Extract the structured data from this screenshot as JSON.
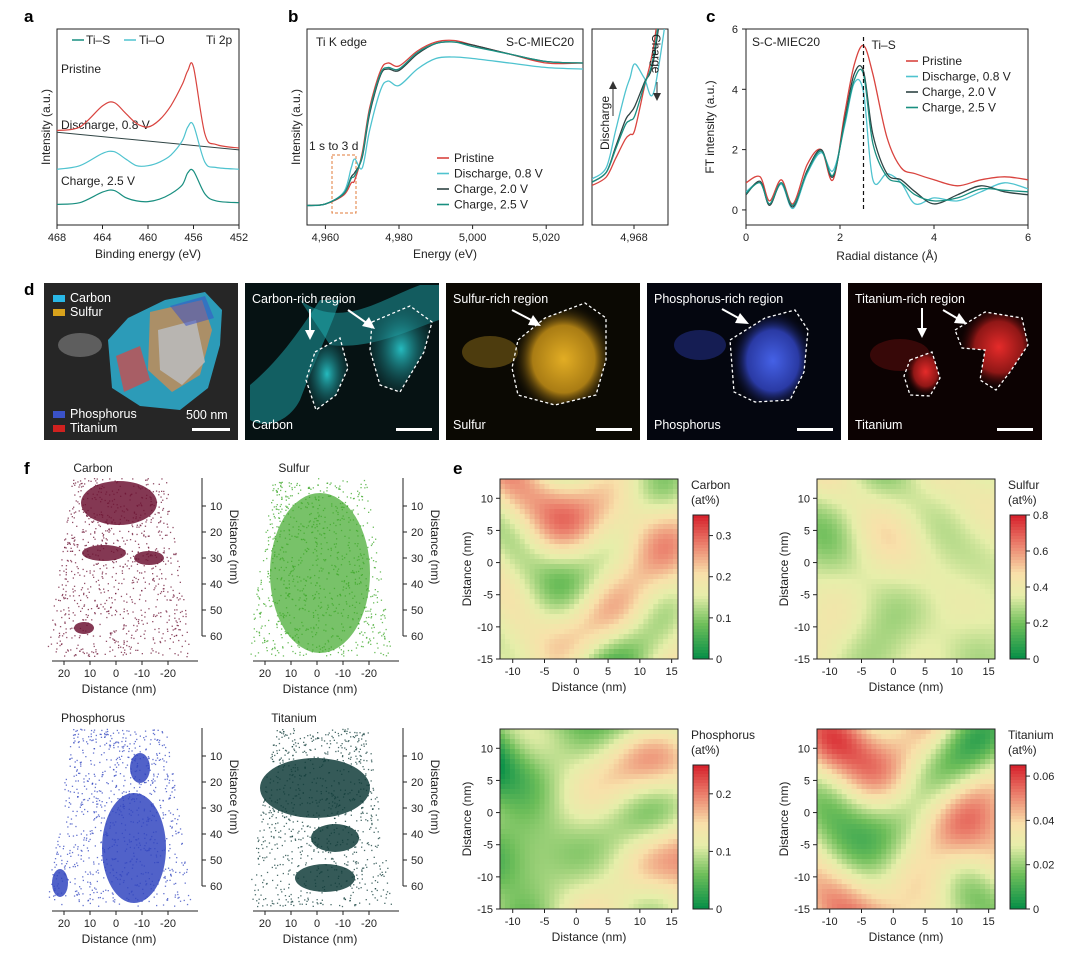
{
  "panel_labels": [
    "a",
    "b",
    "c",
    "d",
    "e",
    "f"
  ],
  "colors": {
    "pristine": "#d9443f",
    "discharge": "#4fc3cf",
    "charge20": "#2f4444",
    "charge25": "#198f80",
    "carbon_map": "#29c6cc",
    "sulfur_map": "#d8a21c",
    "phosphorus_map": "#3a4fd0",
    "titanium_map": "#d0211f",
    "apt_carbon": "#6e1535",
    "apt_sulfur": "#3ea829",
    "apt_phosphorus": "#3347c0",
    "apt_titanium": "#123d3b"
  },
  "chart_data": [
    {
      "id": "a",
      "type": "line",
      "title": "Ti 2p",
      "legend": [
        "Ti–S",
        "Ti–O"
      ],
      "xlabel": "Binding energy (eV)",
      "ylabel": "Intensity (a.u.)",
      "xlim": [
        468,
        452
      ],
      "xticks": [
        "468",
        "464",
        "460",
        "456",
        "452"
      ],
      "traces": [
        "Pristine",
        "Discharge, 0.8 V",
        "Charge, 2.5 V"
      ],
      "series": [
        {
          "name": "Pristine",
          "x": [
            468,
            466,
            464,
            463,
            462,
            461,
            460,
            459,
            458,
            457,
            456.5,
            456,
            455,
            454,
            452
          ],
          "y": [
            1.6,
            1.7,
            2.3,
            2.4,
            2.1,
            1.8,
            1.7,
            1.9,
            2.3,
            2.9,
            3.3,
            3.4,
            1.5,
            1.2,
            1.1
          ]
        },
        {
          "name": "Discharge, 0.8 V",
          "x": [
            468,
            466,
            464,
            463,
            462,
            461,
            460,
            459,
            458,
            457,
            456.5,
            456,
            455,
            454,
            452
          ],
          "y": [
            0.5,
            0.6,
            0.95,
            1.0,
            0.8,
            0.6,
            0.6,
            0.7,
            0.9,
            1.3,
            1.7,
            1.75,
            0.7,
            0.55,
            0.5
          ]
        },
        {
          "name": "Charge, 2.5 V",
          "x": [
            468,
            466,
            464,
            463,
            462,
            461,
            460,
            459,
            458,
            457,
            456.5,
            456,
            455,
            454,
            452
          ],
          "y": [
            -0.5,
            -0.45,
            -0.15,
            -0.1,
            -0.3,
            -0.4,
            -0.42,
            -0.35,
            -0.2,
            0.05,
            0.4,
            0.45,
            -0.2,
            -0.4,
            -0.45
          ]
        }
      ]
    },
    {
      "id": "b",
      "type": "line",
      "title_left": "Ti K edge",
      "title_right": "S-C-MIEC20",
      "xlabel": "Energy (eV)",
      "ylabel": "Intensity (a.u.)",
      "xlim": [
        4955,
        5030
      ],
      "xticks": [
        "4,960",
        "4,980",
        "5,000",
        "5,020"
      ],
      "inset_xtick": "4,968",
      "annotations": [
        "1 s to 3 d",
        "Discharge",
        "Charge"
      ],
      "series": [
        {
          "name": "Pristine",
          "x": [
            4955,
            4960,
            4965,
            4967,
            4968,
            4970,
            4972,
            4975,
            4977,
            4980,
            4985,
            4990,
            4995,
            5000,
            5010,
            5020,
            5030
          ],
          "y": [
            0.05,
            0.06,
            0.12,
            0.2,
            0.22,
            0.4,
            0.7,
            0.95,
            1.0,
            0.98,
            1.08,
            1.14,
            1.15,
            1.12,
            1.06,
            1.0,
            1.0
          ]
        },
        {
          "name": "Discharge, 0.8 V",
          "x": [
            4955,
            4960,
            4965,
            4967,
            4968,
            4970,
            4972,
            4975,
            4977,
            4980,
            4985,
            4990,
            4995,
            5000,
            5010,
            5020,
            5030
          ],
          "y": [
            0.05,
            0.06,
            0.14,
            0.3,
            0.36,
            0.3,
            0.55,
            0.82,
            0.88,
            0.85,
            0.96,
            1.03,
            1.04,
            1.03,
            1.0,
            0.97,
            0.96
          ]
        },
        {
          "name": "Charge, 2.0 V",
          "x": [
            4955,
            4960,
            4965,
            4967,
            4968,
            4970,
            4972,
            4975,
            4977,
            4980,
            4985,
            4990,
            4995,
            5000,
            5010,
            5020,
            5030
          ],
          "y": [
            0.05,
            0.06,
            0.13,
            0.24,
            0.27,
            0.37,
            0.66,
            0.92,
            0.96,
            0.95,
            1.06,
            1.13,
            1.14,
            1.12,
            1.06,
            1.01,
            1.0
          ]
        },
        {
          "name": "Charge, 2.5 V",
          "x": [
            4955,
            4960,
            4965,
            4967,
            4968,
            4970,
            4972,
            4975,
            4977,
            4980,
            4985,
            4990,
            4995,
            5000,
            5010,
            5020,
            5030
          ],
          "y": [
            0.05,
            0.06,
            0.13,
            0.23,
            0.25,
            0.38,
            0.68,
            0.93,
            0.97,
            0.96,
            1.07,
            1.13,
            1.14,
            1.11,
            1.06,
            1.01,
            1.0
          ]
        }
      ]
    },
    {
      "id": "c",
      "type": "line",
      "title": "S-C-MIEC20",
      "marker_label": "Ti–S",
      "marker_x": 2.5,
      "xlabel": "Radial distance (Å)",
      "ylabel": "FT intensity (a.u.)",
      "xlim": [
        0,
        6
      ],
      "ylim": [
        -0.5,
        6
      ],
      "xticks": [
        "0",
        "2",
        "4",
        "6"
      ],
      "yticks": [
        "0",
        "2",
        "4",
        "6"
      ],
      "series": [
        {
          "name": "Pristine",
          "x": [
            0,
            0.3,
            0.5,
            0.75,
            1.0,
            1.3,
            1.6,
            1.85,
            2.1,
            2.3,
            2.5,
            2.7,
            3.0,
            3.3,
            3.6,
            4.0,
            4.5,
            5.0,
            5.5,
            6.0
          ],
          "y": [
            0.9,
            1.1,
            0.3,
            1.0,
            0.2,
            1.5,
            2.0,
            1.0,
            3.2,
            4.8,
            5.45,
            4.5,
            2.4,
            1.4,
            1.2,
            1.0,
            0.8,
            1.0,
            1.1,
            1.0
          ]
        },
        {
          "name": "Discharge, 0.8 V",
          "x": [
            0,
            0.3,
            0.5,
            0.75,
            1.0,
            1.3,
            1.6,
            1.85,
            2.1,
            2.3,
            2.5,
            2.7,
            3.0,
            3.3,
            3.6,
            4.0,
            4.5,
            5.0,
            5.5,
            6.0
          ],
          "y": [
            0.6,
            0.9,
            0.2,
            0.85,
            0.05,
            1.2,
            1.9,
            1.3,
            2.8,
            4.2,
            3.9,
            1.0,
            1.2,
            0.9,
            0.2,
            0.4,
            0.3,
            0.6,
            0.9,
            0.7
          ]
        },
        {
          "name": "Charge, 2.0 V",
          "x": [
            0,
            0.3,
            0.5,
            0.75,
            1.0,
            1.3,
            1.6,
            1.85,
            2.1,
            2.3,
            2.5,
            2.7,
            3.0,
            3.3,
            3.6,
            4.0,
            4.5,
            5.0,
            5.5,
            6.0
          ],
          "y": [
            0.5,
            0.95,
            0.15,
            0.9,
            0.1,
            1.3,
            2.0,
            1.1,
            3.0,
            4.5,
            4.6,
            2.5,
            1.2,
            1.0,
            0.6,
            0.2,
            0.5,
            0.8,
            0.6,
            0.5
          ]
        },
        {
          "name": "Charge, 2.5 V",
          "x": [
            0,
            0.3,
            0.5,
            0.75,
            1.0,
            1.3,
            1.6,
            1.85,
            2.1,
            2.3,
            2.5,
            2.7,
            3.0,
            3.3,
            3.6,
            4.0,
            4.5,
            5.0,
            5.5,
            6.0
          ],
          "y": [
            0.55,
            0.9,
            0.2,
            0.9,
            0.15,
            1.25,
            1.95,
            1.15,
            2.9,
            4.3,
            4.5,
            2.2,
            1.1,
            0.9,
            0.5,
            0.3,
            0.4,
            0.7,
            0.65,
            0.6
          ]
        }
      ]
    },
    {
      "id": "f",
      "type": "heatmap",
      "xlabel": "Distance (nm)",
      "ylabel": "Distance (nm)",
      "xlim": [
        -12,
        16
      ],
      "ylim": [
        -15,
        13
      ],
      "xticks": [
        "-10",
        "-5",
        "0",
        "5",
        "10",
        "15"
      ],
      "yticks": [
        "10",
        "5",
        "0",
        "-5",
        "-10",
        "-15"
      ],
      "maps": [
        {
          "element": "Carbon",
          "unit": "(at%)",
          "vmax": 0.35,
          "cbar_ticks": [
            "0.3",
            "0.2",
            "0.1",
            "0"
          ],
          "cbar_vals": [
            0.3,
            0.2,
            0.1,
            0
          ],
          "mean": 0.52,
          "amp": 0.42,
          "seed": 3
        },
        {
          "element": "Sulfur",
          "unit": "(at%)",
          "vmax": 0.8,
          "cbar_ticks": [
            "0.8",
            "0.6",
            "0.4",
            "0.2",
            "0"
          ],
          "cbar_vals": [
            0.8,
            0.6,
            0.4,
            0.2,
            0
          ],
          "mean": 0.44,
          "amp": 0.18,
          "seed": 7
        },
        {
          "element": "Phosphorus",
          "unit": "(at%)",
          "vmax": 0.25,
          "cbar_ticks": [
            "0.2",
            "0.1",
            "0"
          ],
          "cbar_vals": [
            0.2,
            0.1,
            0
          ],
          "mean": 0.38,
          "amp": 0.38,
          "seed": 11
        },
        {
          "element": "Titanium",
          "unit": "(at%)",
          "vmax": 0.065,
          "cbar_ticks": [
            "0.06",
            "0.04",
            "0.02",
            "0"
          ],
          "cbar_vals": [
            0.06,
            0.04,
            0.02,
            0
          ],
          "mean": 0.52,
          "amp": 0.45,
          "seed": 17
        }
      ]
    },
    {
      "id": "e",
      "type": "scatter",
      "xlabel": "Distance (nm)",
      "ylabel": "Distance (nm)",
      "xticks": [
        "20",
        "10",
        "0",
        "-10",
        "-20"
      ],
      "yticks": [
        "10",
        "20",
        "30",
        "40",
        "50",
        "60"
      ],
      "titles": [
        "Carbon",
        "Sulfur",
        "Phosphorus",
        "Titanium"
      ]
    }
  ],
  "panel_a": {
    "legend_tis": "Ti–S",
    "legend_tio": "Ti–O",
    "title": "Ti 2p",
    "trace1": "Pristine",
    "trace2": "Discharge, 0.8 V",
    "trace3": "Charge, 2.5 V"
  },
  "panel_b": {
    "title_left": "Ti K edge",
    "title_right": "S-C-MIEC20",
    "annotation": "1 s to 3 d",
    "inset_discharge": "Discharge",
    "inset_charge": "Charge",
    "legend": [
      "Pristine",
      "Discharge, 0.8 V",
      "Charge, 2.0 V",
      "Charge, 2.5 V"
    ]
  },
  "panel_c": {
    "title": "S-C-MIEC20",
    "marker": "Ti–S",
    "legend": [
      "Pristine",
      "Discharge, 0.8 V",
      "Charge, 2.0 V",
      "Charge, 2.5 V"
    ]
  },
  "panel_d": {
    "overlay_legend": [
      "Carbon",
      "Sulfur",
      "Phosphorus",
      "Titanium"
    ],
    "scale_bar": "500 nm",
    "maps": [
      {
        "region": "Carbon-rich region",
        "element": "Carbon"
      },
      {
        "region": "Sulfur-rich region",
        "element": "Sulfur"
      },
      {
        "region": "Phosphorus-rich region",
        "element": "Phosphorus"
      },
      {
        "region": "Titanium-rich region",
        "element": "Titanium"
      }
    ]
  }
}
